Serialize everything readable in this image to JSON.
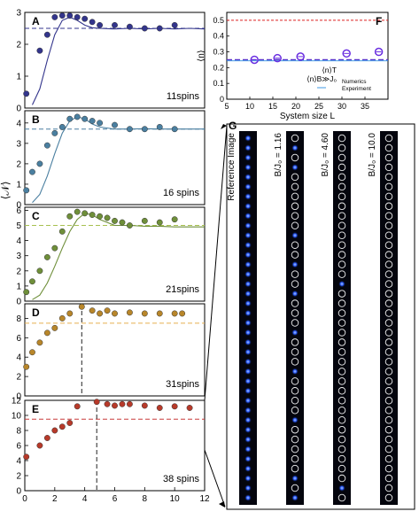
{
  "figure": {
    "left_ylabel": "⟨𝒩⟩"
  },
  "chart_data": [
    {
      "panel": "A",
      "type": "scatter",
      "annotation": "11spins",
      "color": "#33358c",
      "dashed_color": "#33358c",
      "xlim": [
        0,
        12
      ],
      "ylim": [
        0,
        3
      ],
      "yticks": [
        0,
        1,
        2,
        3
      ],
      "xticks": [],
      "dashed_y": 2.5,
      "points": [
        [
          0.1,
          0.45
        ],
        [
          1.0,
          1.8
        ],
        [
          1.5,
          2.3
        ],
        [
          2.0,
          2.85
        ],
        [
          2.5,
          2.9
        ],
        [
          3.0,
          2.9
        ],
        [
          3.5,
          2.85
        ],
        [
          4.0,
          2.8
        ],
        [
          4.5,
          2.7
        ],
        [
          5.0,
          2.6
        ],
        [
          6.0,
          2.6
        ],
        [
          7.0,
          2.55
        ],
        [
          8.0,
          2.5
        ],
        [
          9.0,
          2.5
        ],
        [
          10.0,
          2.6
        ]
      ],
      "theory": [
        [
          0.5,
          0.1
        ],
        [
          1.0,
          0.6
        ],
        [
          1.5,
          1.5
        ],
        [
          2.0,
          2.3
        ],
        [
          2.5,
          2.75
        ],
        [
          3.0,
          2.85
        ],
        [
          3.5,
          2.75
        ],
        [
          4.0,
          2.6
        ],
        [
          4.5,
          2.52
        ],
        [
          5.0,
          2.5
        ],
        [
          6.0,
          2.48
        ],
        [
          7.0,
          2.5
        ],
        [
          8.0,
          2.48
        ],
        [
          9.0,
          2.5
        ],
        [
          10.0,
          2.48
        ],
        [
          11.0,
          2.5
        ],
        [
          12.0,
          2.48
        ]
      ]
    },
    {
      "panel": "B",
      "type": "scatter",
      "annotation": "16 spins",
      "color": "#4a7fa0",
      "dashed_color": "#4a7fa0",
      "xlim": [
        0,
        12
      ],
      "ylim": [
        0,
        4.6
      ],
      "yticks": [
        0,
        1,
        2,
        3,
        4
      ],
      "xticks": [],
      "dashed_y": 3.7,
      "points": [
        [
          0.1,
          0.7
        ],
        [
          0.5,
          1.6
        ],
        [
          1.0,
          2.0
        ],
        [
          1.5,
          2.9
        ],
        [
          2.0,
          3.5
        ],
        [
          2.5,
          3.8
        ],
        [
          3.0,
          4.2
        ],
        [
          3.5,
          4.3
        ],
        [
          4.0,
          4.2
        ],
        [
          4.5,
          4.1
        ],
        [
          5.0,
          4.0
        ],
        [
          6.0,
          3.9
        ],
        [
          7.0,
          3.7
        ],
        [
          8.0,
          3.7
        ],
        [
          9.0,
          3.8
        ],
        [
          10.0,
          3.7
        ]
      ],
      "theory": [
        [
          0.5,
          0.1
        ],
        [
          1.0,
          0.5
        ],
        [
          1.5,
          1.4
        ],
        [
          2.0,
          2.5
        ],
        [
          2.5,
          3.5
        ],
        [
          3.0,
          4.1
        ],
        [
          3.5,
          4.3
        ],
        [
          4.0,
          4.2
        ],
        [
          4.5,
          3.95
        ],
        [
          5.0,
          3.8
        ],
        [
          6.0,
          3.7
        ],
        [
          7.0,
          3.7
        ],
        [
          8.0,
          3.72
        ],
        [
          9.0,
          3.7
        ],
        [
          10.0,
          3.7
        ],
        [
          12.0,
          3.7
        ]
      ]
    },
    {
      "panel": "C",
      "type": "scatter",
      "annotation": "21spins",
      "color": "#6f8f3a",
      "dashed_color": "#a7c050",
      "xlim": [
        0,
        12
      ],
      "ylim": [
        0,
        6.2
      ],
      "yticks": [
        0,
        1,
        2,
        3,
        4,
        5,
        6
      ],
      "xticks": [],
      "dashed_y": 5.0,
      "points": [
        [
          0.1,
          0.6
        ],
        [
          0.5,
          1.3
        ],
        [
          1.0,
          2.0
        ],
        [
          1.5,
          2.9
        ],
        [
          2.0,
          3.5
        ],
        [
          2.5,
          4.6
        ],
        [
          3.0,
          5.6
        ],
        [
          3.5,
          5.9
        ],
        [
          4.0,
          5.8
        ],
        [
          4.5,
          5.7
        ],
        [
          5.0,
          5.6
        ],
        [
          5.5,
          5.5
        ],
        [
          6.0,
          5.3
        ],
        [
          6.5,
          5.2
        ],
        [
          7.0,
          5.0
        ],
        [
          8.0,
          5.3
        ],
        [
          9.0,
          5.2
        ],
        [
          10.0,
          5.4
        ]
      ],
      "theory": [
        [
          0.5,
          0.1
        ],
        [
          1.0,
          0.4
        ],
        [
          1.5,
          1.2
        ],
        [
          2.0,
          2.3
        ],
        [
          2.5,
          3.5
        ],
        [
          3.0,
          4.6
        ],
        [
          3.5,
          5.4
        ],
        [
          4.0,
          5.8
        ],
        [
          4.5,
          5.7
        ],
        [
          5.0,
          5.4
        ],
        [
          5.5,
          5.2
        ],
        [
          6.0,
          5.0
        ],
        [
          7.0,
          5.0
        ],
        [
          8.0,
          4.95
        ],
        [
          9.0,
          4.95
        ],
        [
          10.0,
          4.9
        ],
        [
          12.0,
          4.9
        ]
      ]
    },
    {
      "panel": "D",
      "type": "scatter",
      "annotation": "31spins",
      "color": "#b8862a",
      "dashed_color": "#e8b050",
      "xlim": [
        0,
        12
      ],
      "ylim": [
        0,
        9.5
      ],
      "yticks": [
        0,
        2,
        4,
        6,
        8
      ],
      "xticks": [],
      "dashed_y": 7.5,
      "vline_x": 3.8,
      "points": [
        [
          0.1,
          3.0
        ],
        [
          0.5,
          4.5
        ],
        [
          1.0,
          5.5
        ],
        [
          1.5,
          6.5
        ],
        [
          2.0,
          7.0
        ],
        [
          2.5,
          8.0
        ],
        [
          3.0,
          8.5
        ],
        [
          3.8,
          9.2
        ],
        [
          4.5,
          8.8
        ],
        [
          5.0,
          8.5
        ],
        [
          5.5,
          8.8
        ],
        [
          6.0,
          8.5
        ],
        [
          7.0,
          8.6
        ],
        [
          8.0,
          8.5
        ],
        [
          9.0,
          8.5
        ],
        [
          10.0,
          8.5
        ],
        [
          10.5,
          8.5
        ]
      ],
      "theory": []
    },
    {
      "panel": "E",
      "type": "scatter",
      "annotation": "38 spins",
      "color": "#b73a2a",
      "dashed_color": "#c83a3a",
      "xlim": [
        0,
        12
      ],
      "ylim": [
        0,
        12
      ],
      "yticks": [
        0,
        2,
        4,
        6,
        8,
        10,
        12
      ],
      "xticks": [
        0,
        2,
        4,
        6,
        8,
        10,
        12
      ],
      "dashed_y": 9.5,
      "vline_x": 4.8,
      "points": [
        [
          0.1,
          4.5
        ],
        [
          1.0,
          6.0
        ],
        [
          1.5,
          7.0
        ],
        [
          2.0,
          8.0
        ],
        [
          2.5,
          8.5
        ],
        [
          3.0,
          9.0
        ],
        [
          3.5,
          11.2
        ],
        [
          4.8,
          11.8
        ],
        [
          5.5,
          11.5
        ],
        [
          6.0,
          11.3
        ],
        [
          6.5,
          11.5
        ],
        [
          7.0,
          11.5
        ],
        [
          8.0,
          11.3
        ],
        [
          9.0,
          11.0
        ],
        [
          10.0,
          11.2
        ],
        [
          11.0,
          11.0
        ]
      ],
      "theory": []
    },
    {
      "panel": "F",
      "type": "scatter",
      "xlabel": "System size L",
      "ylabel": "⟨n⟩",
      "xlim": [
        5,
        40
      ],
      "ylim": [
        0,
        0.55
      ],
      "xticks": [
        5,
        10,
        15,
        20,
        25,
        30,
        35
      ],
      "yticks": [
        0,
        0.1,
        0.2,
        0.3,
        0.4,
        0.5
      ],
      "line_red_y": 0.5,
      "line_blue_y": 0.25,
      "points": [
        [
          11,
          0.25
        ],
        [
          16,
          0.26
        ],
        [
          21,
          0.27
        ],
        [
          31,
          0.29
        ],
        [
          38,
          0.3
        ]
      ],
      "legend": [
        {
          "label": "⟨n⟩T",
          "style": "red-dashed"
        },
        {
          "label": "⟨n⟩B≫J₀",
          "style": "blue-dashed"
        },
        {
          "label": "Numerics",
          "style": "line"
        },
        {
          "label": "Experiment",
          "style": "circle"
        }
      ]
    }
  ],
  "panel_g": {
    "label": "G",
    "strip_labels": [
      "Reference Image",
      "B/J₀ = 1.16",
      "B/J₀ = 4.60",
      "B/J₀ = 10.0"
    ],
    "ion_count": 38,
    "empty_sites": [
      [],
      [
        0,
        2,
        4,
        5,
        6,
        7,
        8,
        9,
        11,
        12,
        14,
        15,
        17,
        18,
        19,
        21,
        22,
        23,
        25,
        26,
        27,
        28,
        30,
        31,
        32,
        33,
        34,
        36
      ],
      [
        0,
        1,
        2,
        3,
        4,
        5,
        6,
        7,
        8,
        9,
        10,
        11,
        12,
        13,
        14,
        16,
        17,
        18,
        19,
        20,
        21,
        22,
        23,
        24,
        25,
        26,
        27,
        28,
        29,
        30,
        31,
        32,
        33,
        34,
        35,
        37
      ],
      [
        0,
        1,
        2,
        3,
        4,
        5,
        6,
        7,
        8,
        9,
        10,
        11,
        12,
        13,
        14,
        15,
        16,
        17,
        18,
        19,
        20,
        21,
        22,
        23,
        24,
        25,
        26,
        27,
        28,
        29,
        30,
        31,
        32,
        33,
        34,
        35,
        36,
        37
      ]
    ]
  }
}
